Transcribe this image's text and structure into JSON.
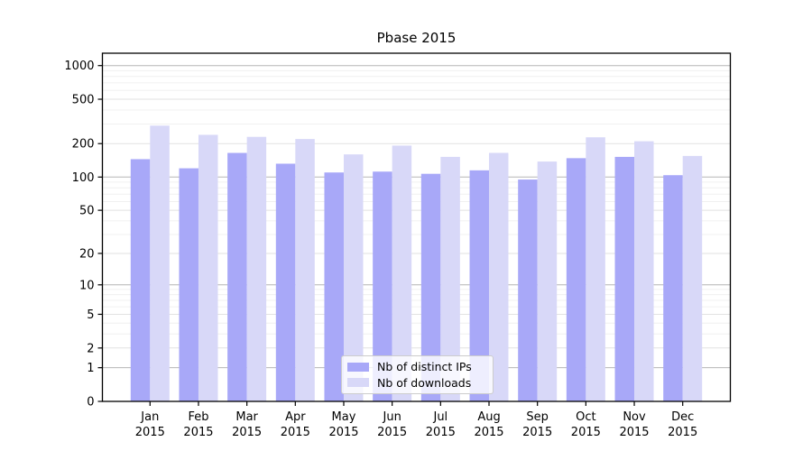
{
  "title": "Pbase 2015",
  "legend": {
    "items": [
      {
        "label": "Nb of distinct IPs",
        "color": "#a8a8f8"
      },
      {
        "label": "Nb of downloads",
        "color": "#d8d8f8"
      }
    ]
  },
  "chart_data": {
    "type": "bar",
    "title": "Pbase 2015",
    "categories": [
      "Jan",
      "Feb",
      "Mar",
      "Apr",
      "May",
      "Jun",
      "Jul",
      "Aug",
      "Sep",
      "Oct",
      "Nov",
      "Dec"
    ],
    "year_label": "2015",
    "series": [
      {
        "name": "Nb of distinct IPs",
        "color": "#a8a8f8",
        "values": [
          145,
          120,
          165,
          132,
          110,
          112,
          107,
          115,
          95,
          148,
          152,
          104
        ]
      },
      {
        "name": "Nb of downloads",
        "color": "#d8d8f8",
        "values": [
          290,
          240,
          230,
          220,
          160,
          192,
          152,
          165,
          138,
          228,
          210,
          155
        ]
      }
    ],
    "xlabel": "",
    "ylabel": "",
    "y_scale": "log1p",
    "ylim": [
      0,
      1290
    ],
    "y_ticks": [
      0,
      1,
      2,
      5,
      10,
      20,
      50,
      100,
      200,
      500,
      1000
    ],
    "y_major_gridlines": [
      1,
      10,
      100,
      1000
    ],
    "y_mid_gridlines": [
      2,
      5,
      20,
      50,
      200,
      500
    ],
    "y_minor_gridlines": [
      3,
      4,
      6,
      7,
      8,
      9,
      30,
      40,
      60,
      70,
      80,
      90,
      300,
      400,
      600,
      700,
      800,
      900
    ],
    "grid": true,
    "legend_position": "inside-bottom-center"
  }
}
